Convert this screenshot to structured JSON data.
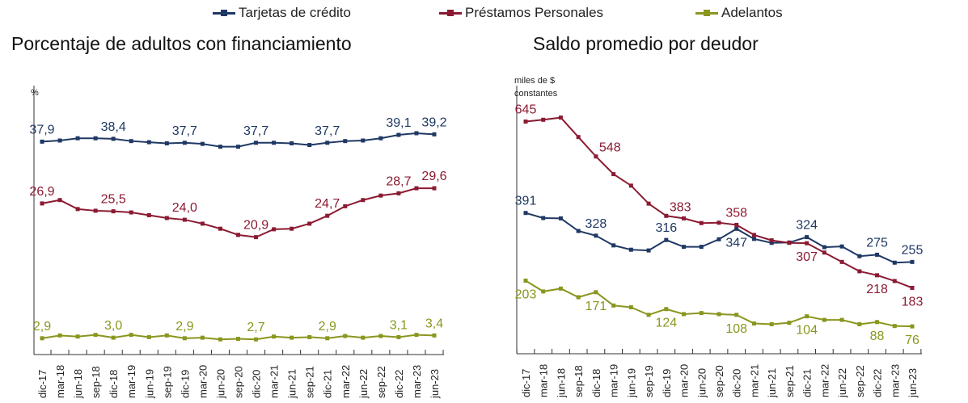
{
  "legend": [
    {
      "name": "Tarjetas de crédito",
      "color": "#1f3864"
    },
    {
      "name": "Préstamos Personales",
      "color": "#8b1a32"
    },
    {
      "name": "Adelantos",
      "color": "#8a961e"
    }
  ],
  "chart_data": [
    {
      "type": "line",
      "title": "Porcentaje de adultos con financiamiento",
      "ylabel": "%",
      "ylim": [
        0,
        45
      ],
      "grid": false,
      "legend_placement": "top",
      "categories": [
        "dic-17",
        "mar-18",
        "jun-18",
        "sep-18",
        "dic-18",
        "mar-19",
        "jun-19",
        "sep-19",
        "dic-19",
        "mar-20",
        "jun-20",
        "sep-20",
        "dic-20",
        "mar-21",
        "jun-21",
        "sep-21",
        "dic-21",
        "mar-22",
        "jun-22",
        "sep-22",
        "dic-22",
        "mar-23",
        "jun-23"
      ],
      "series": [
        {
          "name": "Tarjetas de crédito",
          "color": "#1f3864",
          "values": [
            37.9,
            38.1,
            38.5,
            38.5,
            38.4,
            38.0,
            37.8,
            37.6,
            37.7,
            37.5,
            37.0,
            37.0,
            37.7,
            37.7,
            37.6,
            37.3,
            37.7,
            38.0,
            38.1,
            38.5,
            39.1,
            39.4,
            39.2
          ],
          "labels": [
            {
              "i": 0,
              "text": "37,9"
            },
            {
              "i": 4,
              "text": "38,4"
            },
            {
              "i": 8,
              "text": "37,7"
            },
            {
              "i": 12,
              "text": "37,7"
            },
            {
              "i": 16,
              "text": "37,7"
            },
            {
              "i": 20,
              "text": "39,1"
            },
            {
              "i": 22,
              "text": "39,2"
            }
          ]
        },
        {
          "name": "Préstamos Personales",
          "color": "#8b1a32",
          "values": [
            26.9,
            27.5,
            25.9,
            25.6,
            25.5,
            25.3,
            24.8,
            24.3,
            24.0,
            23.3,
            22.4,
            21.3,
            20.9,
            22.3,
            22.4,
            23.3,
            24.7,
            26.4,
            27.5,
            28.3,
            28.7,
            29.6,
            29.6
          ],
          "labels": [
            {
              "i": 0,
              "text": "26,9"
            },
            {
              "i": 4,
              "text": "25,5"
            },
            {
              "i": 8,
              "text": "24,0"
            },
            {
              "i": 12,
              "text": "20,9"
            },
            {
              "i": 16,
              "text": "24,7"
            },
            {
              "i": 20,
              "text": "28,7"
            },
            {
              "i": 22,
              "text": "29,6"
            }
          ]
        },
        {
          "name": "Adelantos",
          "color": "#8a961e",
          "values": [
            2.9,
            3.4,
            3.2,
            3.5,
            3.0,
            3.5,
            3.1,
            3.4,
            2.9,
            3.0,
            2.7,
            2.8,
            2.7,
            3.2,
            3.0,
            3.1,
            2.9,
            3.3,
            3.0,
            3.3,
            3.1,
            3.5,
            3.4
          ],
          "labels": [
            {
              "i": 0,
              "text": "2,9"
            },
            {
              "i": 4,
              "text": "3,0"
            },
            {
              "i": 8,
              "text": "2,9"
            },
            {
              "i": 12,
              "text": "2,7"
            },
            {
              "i": 16,
              "text": "2,9"
            },
            {
              "i": 20,
              "text": "3,1"
            },
            {
              "i": 22,
              "text": "3,4"
            }
          ]
        }
      ]
    },
    {
      "type": "line",
      "title": "Saldo promedio por deudor",
      "ylabel": [
        "miles de $",
        "constantes"
      ],
      "ylim": [
        0,
        700
      ],
      "grid": false,
      "legend_placement": "top",
      "categories": [
        "dic-17",
        "mar-18",
        "jun-18",
        "sep-18",
        "dic-18",
        "mar-19",
        "jun-19",
        "sep-19",
        "dic-19",
        "mar-20",
        "jun-20",
        "sep-20",
        "dic-20",
        "mar-21",
        "jun-21",
        "sep-21",
        "dic-21",
        "mar-22",
        "jun-22",
        "sep-22",
        "dic-22",
        "mar-23",
        "jun-23"
      ],
      "series": [
        {
          "name": "Tarjetas de crédito",
          "color": "#1f3864",
          "values": [
            391,
            377,
            376,
            341,
            328,
            301,
            289,
            287,
            316,
            297,
            297,
            318,
            347,
            319,
            308,
            309,
            324,
            296,
            298,
            271,
            275,
            253,
            255
          ],
          "labels": [
            {
              "i": 0,
              "text": "391"
            },
            {
              "i": 4,
              "text": "328"
            },
            {
              "i": 8,
              "text": "316"
            },
            {
              "i": 12,
              "text": "347"
            },
            {
              "i": 16,
              "text": "324"
            },
            {
              "i": 20,
              "text": "275"
            },
            {
              "i": 22,
              "text": "255"
            }
          ]
        },
        {
          "name": "Préstamos Personales",
          "color": "#8b1a32",
          "values": [
            645,
            650,
            656,
            602,
            548,
            499,
            467,
            417,
            383,
            376,
            363,
            364,
            358,
            330,
            315,
            308,
            307,
            281,
            255,
            229,
            218,
            202,
            183
          ],
          "labels": [
            {
              "i": 0,
              "text": "645"
            },
            {
              "i": 4,
              "text": "548"
            },
            {
              "i": 8,
              "text": "383"
            },
            {
              "i": 12,
              "text": "358"
            },
            {
              "i": 16,
              "text": "307"
            },
            {
              "i": 20,
              "text": "218"
            },
            {
              "i": 22,
              "text": "183"
            }
          ]
        },
        {
          "name": "Adelantos",
          "color": "#8a961e",
          "values": [
            203,
            173,
            181,
            157,
            171,
            134,
            129,
            108,
            124,
            110,
            113,
            110,
            108,
            84,
            82,
            86,
            104,
            94,
            94,
            82,
            88,
            77,
            76
          ],
          "labels": [
            {
              "i": 0,
              "text": "203"
            },
            {
              "i": 4,
              "text": "171"
            },
            {
              "i": 8,
              "text": "124"
            },
            {
              "i": 12,
              "text": "108"
            },
            {
              "i": 16,
              "text": "104"
            },
            {
              "i": 20,
              "text": "88"
            },
            {
              "i": 22,
              "text": "76"
            }
          ]
        }
      ]
    }
  ]
}
